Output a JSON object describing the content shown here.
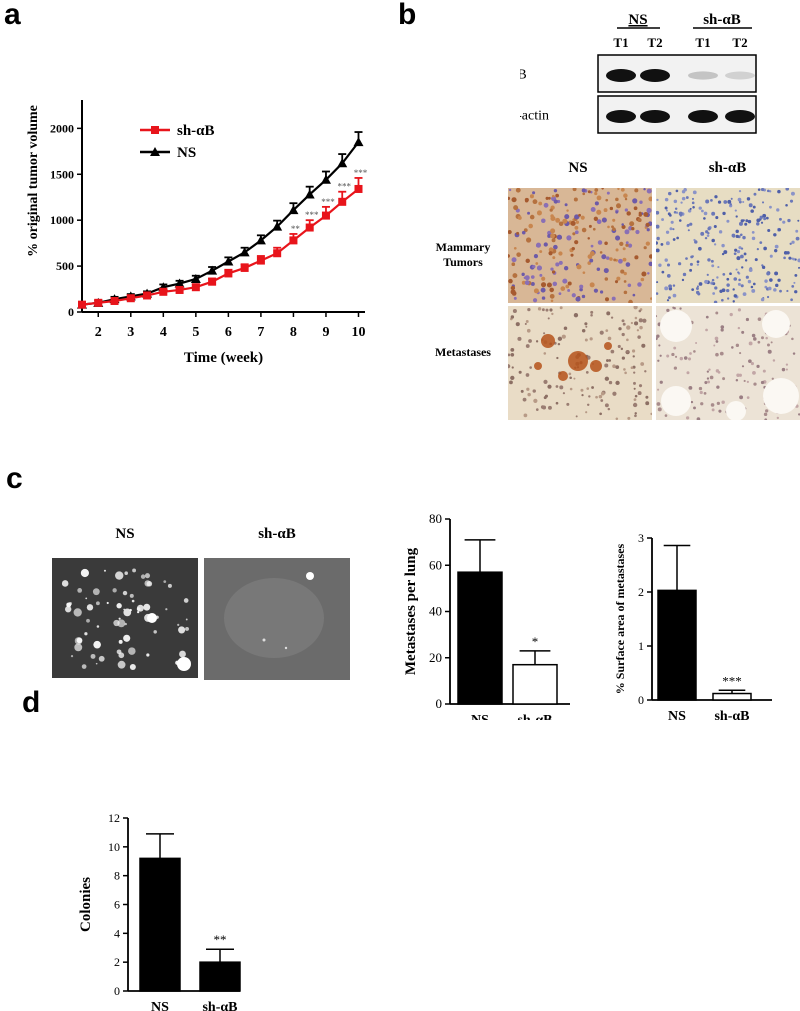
{
  "panels": {
    "a": {
      "label": "a",
      "chart_data": {
        "type": "line",
        "xlabel": "Time (week)",
        "ylabel": "% original tumor volume",
        "xlim": [
          1.5,
          10.2
        ],
        "ylim": [
          0,
          2200
        ],
        "xticks": [
          "2",
          "3",
          "4",
          "5",
          "6",
          "7",
          "8",
          "9",
          "10"
        ],
        "yticks": [
          "0",
          "500",
          "1000",
          "1500",
          "2000"
        ],
        "legend_position": "top-left",
        "series": [
          {
            "name": "sh-αB",
            "color": "#e8141b",
            "marker": "square",
            "x": [
              1.5,
              2,
              2.5,
              3,
              3.5,
              4,
              4.5,
              5,
              5.5,
              6,
              6.5,
              7,
              7.5,
              8,
              8.5,
              9,
              9.5,
              10
            ],
            "y": [
              80,
              100,
              120,
              150,
              180,
              220,
              240,
              270,
              330,
              420,
              480,
              560,
              640,
              780,
              920,
              1050,
              1200,
              1340
            ],
            "err": [
              25,
              25,
              25,
              25,
              25,
              25,
              30,
              30,
              35,
              40,
              40,
              50,
              60,
              70,
              80,
              95,
              110,
              120
            ]
          },
          {
            "name": "NS",
            "color": "#000000",
            "marker": "triangle",
            "x": [
              1.5,
              2,
              2.5,
              3,
              3.5,
              4,
              4.5,
              5,
              5.5,
              6,
              6.5,
              7,
              7.5,
              8,
              8.5,
              9,
              9.5,
              10
            ],
            "y": [
              80,
              100,
              140,
              170,
              200,
              270,
              310,
              360,
              450,
              550,
              650,
              780,
              930,
              1110,
              1280,
              1440,
              1620,
              1850
            ],
            "err": [
              25,
              25,
              25,
              25,
              25,
              30,
              30,
              35,
              40,
              45,
              50,
              55,
              65,
              75,
              85,
              90,
              100,
              110
            ]
          }
        ],
        "annotations": [
          {
            "x": 8,
            "text": "**"
          },
          {
            "x": 8.5,
            "text": "***"
          },
          {
            "x": 9,
            "text": "***"
          },
          {
            "x": 9.5,
            "text": "***"
          },
          {
            "x": 10,
            "text": "***"
          }
        ]
      }
    },
    "b": {
      "label": "b",
      "blot": {
        "groups": [
          "NS",
          "sh-αB"
        ],
        "lanes": [
          "T1",
          "T2",
          "T1",
          "T2"
        ],
        "rows": [
          {
            "label": "αB",
            "intensity": [
              1,
              1,
              0.2,
              0.15
            ]
          },
          {
            "label": "β-actin",
            "intensity": [
              1,
              1,
              1,
              1
            ]
          }
        ]
      },
      "ihc": {
        "columns": [
          "NS",
          "sh-αB"
        ],
        "rows": [
          "Mammary Tumors",
          "Metastases"
        ]
      }
    },
    "c": {
      "label": "c",
      "images": {
        "labels": [
          "NS",
          "sh-αB"
        ]
      },
      "chart1": {
        "chart_data": {
          "type": "bar",
          "categories": [
            "NS",
            "sh-αB"
          ],
          "values": [
            57,
            17
          ],
          "errors": [
            14,
            6
          ],
          "ylabel": "Metastases per lung",
          "ylim": [
            0,
            80
          ],
          "yticks": [
            "0",
            "20",
            "40",
            "60",
            "80"
          ],
          "fills": [
            "#000000",
            "#ffffff"
          ],
          "annotations": [
            {
              "category": "sh-αB",
              "text": "*"
            }
          ]
        }
      },
      "chart2": {
        "chart_data": {
          "type": "bar",
          "categories": [
            "NS",
            "sh-αB"
          ],
          "values": [
            2.03,
            0.12
          ],
          "errors": [
            0.83,
            0.06
          ],
          "ylabel": "% Surface area of metastases",
          "ylim": [
            0,
            3
          ],
          "yticks": [
            "0",
            "1",
            "2",
            "3"
          ],
          "fills": [
            "#000000",
            "#ffffff"
          ],
          "annotations": [
            {
              "category": "sh-αB",
              "text": "***"
            }
          ]
        }
      }
    },
    "d": {
      "label": "d",
      "chart_data": {
        "type": "bar",
        "categories": [
          "NS",
          "sh-αB"
        ],
        "values": [
          9.2,
          2.0
        ],
        "errors": [
          1.7,
          0.9
        ],
        "ylabel": "Colonies",
        "ylim": [
          0,
          12
        ],
        "yticks": [
          "0",
          "2",
          "4",
          "6",
          "8",
          "10",
          "12"
        ],
        "fills": [
          "#000000",
          "#000000"
        ],
        "annotations": [
          {
            "category": "sh-αB",
            "text": "**"
          }
        ]
      }
    }
  }
}
